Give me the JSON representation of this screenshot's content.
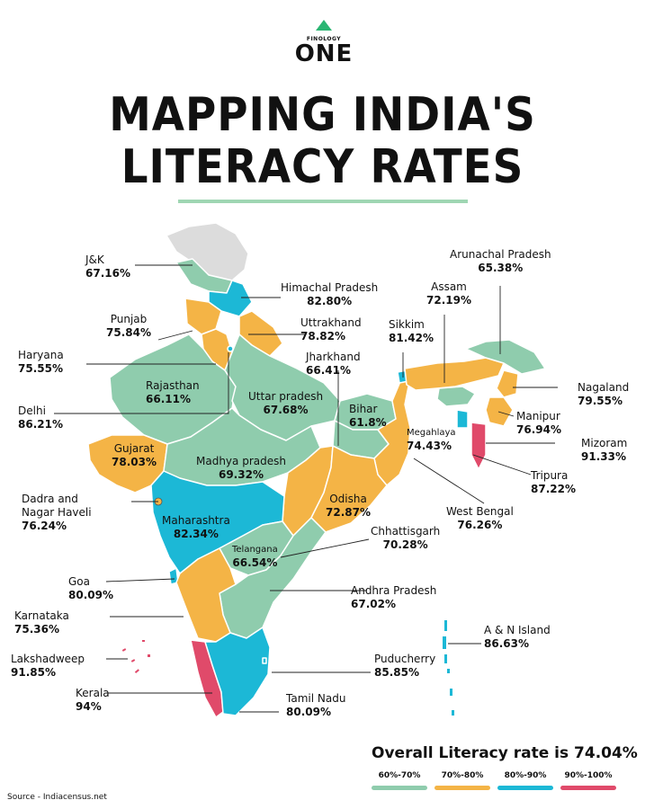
{
  "brand": {
    "small": "FINOLOGY",
    "main": "ONE"
  },
  "title": {
    "line1": "MAPPING INDIA'S",
    "line2": "LITERACY RATES"
  },
  "colors": {
    "band_60_70": "#8fccad",
    "band_70_80": "#f4b446",
    "band_80_90": "#1cb8d6",
    "band_90_100": "#e04a6a",
    "no_data": "#dcdcdc",
    "accent_line": "#9fd6b3"
  },
  "regions": {
    "jk": {
      "name": "J&K",
      "value": "67.16%"
    },
    "himachal": {
      "name": "Himachal Pradesh",
      "value": "82.80%"
    },
    "punjab": {
      "name": "Punjab",
      "value": "75.84%"
    },
    "uttrakhand": {
      "name": "Uttrakhand",
      "value": "78.82%"
    },
    "haryana": {
      "name": "Haryana",
      "value": "75.55%"
    },
    "rajasthan": {
      "name": "Rajasthan",
      "value": "66.11%"
    },
    "delhi": {
      "name": "Delhi",
      "value": "86.21%"
    },
    "uttar_pradesh": {
      "name": "Uttar pradesh",
      "value": "67.68%"
    },
    "jharkhand": {
      "name": "Jharkhand",
      "value": "66.41%"
    },
    "bihar": {
      "name": "Bihar",
      "value": "61.8%"
    },
    "sikkim": {
      "name": "Sikkim",
      "value": "81.42%"
    },
    "assam": {
      "name": "Assam",
      "value": "72.19%"
    },
    "arunachal": {
      "name": "Arunachal Pradesh",
      "value": "65.38%"
    },
    "nagaland": {
      "name": "Nagaland",
      "value": "79.55%"
    },
    "manipur": {
      "name": "Manipur",
      "value": "76.94%"
    },
    "meghalaya": {
      "name": "Megahlaya",
      "value": "74.43%"
    },
    "mizoram": {
      "name": "Mizoram",
      "value": "91.33%"
    },
    "tripura": {
      "name": "Tripura",
      "value": "87.22%"
    },
    "gujarat": {
      "name": "Gujarat",
      "value": "78.03%"
    },
    "madhya_pradesh": {
      "name": "Madhya pradesh",
      "value": "69.32%"
    },
    "dadra": {
      "name": "Dadra and Nagar Haveli",
      "value": "76.24%"
    },
    "odisha": {
      "name": "Odisha",
      "value": "72.87%"
    },
    "west_bengal": {
      "name": "West Bengal",
      "value": "76.26%"
    },
    "maharashtra": {
      "name": "Maharashtra",
      "value": "82.34%"
    },
    "chhattisgarh": {
      "name": "Chhattisgarh",
      "value": "70.28%"
    },
    "telangana": {
      "name": "Telangana",
      "value": "66.54%"
    },
    "goa": {
      "name": "Goa",
      "value": "80.09%"
    },
    "andhra": {
      "name": "Andhra Pradesh",
      "value": "67.02%"
    },
    "karnataka": {
      "name": "Karnataka",
      "value": "75.36%"
    },
    "an_island": {
      "name": "A & N Island",
      "value": "86.63%"
    },
    "lakshadweep": {
      "name": "Lakshadweep",
      "value": "91.85%"
    },
    "puducherry": {
      "name": "Puducherry",
      "value": "85.85%"
    },
    "kerala": {
      "name": "Kerala",
      "value": "94%"
    },
    "tamil_nadu": {
      "name": "Tamil Nadu",
      "value": "80.09%"
    }
  },
  "overall": "Overall Literacy rate is 74.04%",
  "legend": [
    {
      "label": "60%-70%",
      "color": "#8fccad"
    },
    {
      "label": "70%-80%",
      "color": "#f4b446"
    },
    {
      "label": "80%-90%",
      "color": "#1cb8d6"
    },
    {
      "label": "90%-100%",
      "color": "#e04a6a"
    }
  ],
  "source": "Source - Indiacensus.net"
}
